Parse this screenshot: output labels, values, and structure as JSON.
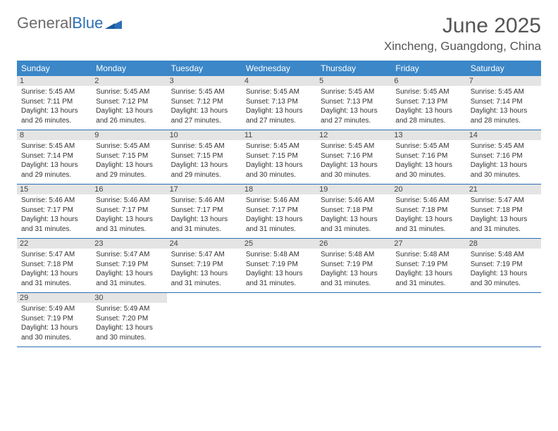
{
  "logo": {
    "text1": "General",
    "text2": "Blue"
  },
  "title": "June 2025",
  "location": "Xincheng, Guangdong, China",
  "colors": {
    "header_bg": "#3b87c8",
    "border": "#2c6fb5",
    "daynum_bg": "#e4e4e4",
    "text": "#333333",
    "title_text": "#555555",
    "logo_gray": "#6b6b6b",
    "logo_blue": "#2c6fb5"
  },
  "weekdays": [
    "Sunday",
    "Monday",
    "Tuesday",
    "Wednesday",
    "Thursday",
    "Friday",
    "Saturday"
  ],
  "weeks": [
    [
      {
        "n": "1",
        "sr": "5:45 AM",
        "ss": "7:11 PM",
        "dl": "13 hours and 26 minutes."
      },
      {
        "n": "2",
        "sr": "5:45 AM",
        "ss": "7:12 PM",
        "dl": "13 hours and 26 minutes."
      },
      {
        "n": "3",
        "sr": "5:45 AM",
        "ss": "7:12 PM",
        "dl": "13 hours and 27 minutes."
      },
      {
        "n": "4",
        "sr": "5:45 AM",
        "ss": "7:13 PM",
        "dl": "13 hours and 27 minutes."
      },
      {
        "n": "5",
        "sr": "5:45 AM",
        "ss": "7:13 PM",
        "dl": "13 hours and 27 minutes."
      },
      {
        "n": "6",
        "sr": "5:45 AM",
        "ss": "7:13 PM",
        "dl": "13 hours and 28 minutes."
      },
      {
        "n": "7",
        "sr": "5:45 AM",
        "ss": "7:14 PM",
        "dl": "13 hours and 28 minutes."
      }
    ],
    [
      {
        "n": "8",
        "sr": "5:45 AM",
        "ss": "7:14 PM",
        "dl": "13 hours and 29 minutes."
      },
      {
        "n": "9",
        "sr": "5:45 AM",
        "ss": "7:15 PM",
        "dl": "13 hours and 29 minutes."
      },
      {
        "n": "10",
        "sr": "5:45 AM",
        "ss": "7:15 PM",
        "dl": "13 hours and 29 minutes."
      },
      {
        "n": "11",
        "sr": "5:45 AM",
        "ss": "7:15 PM",
        "dl": "13 hours and 30 minutes."
      },
      {
        "n": "12",
        "sr": "5:45 AM",
        "ss": "7:16 PM",
        "dl": "13 hours and 30 minutes."
      },
      {
        "n": "13",
        "sr": "5:45 AM",
        "ss": "7:16 PM",
        "dl": "13 hours and 30 minutes."
      },
      {
        "n": "14",
        "sr": "5:45 AM",
        "ss": "7:16 PM",
        "dl": "13 hours and 30 minutes."
      }
    ],
    [
      {
        "n": "15",
        "sr": "5:46 AM",
        "ss": "7:17 PM",
        "dl": "13 hours and 31 minutes."
      },
      {
        "n": "16",
        "sr": "5:46 AM",
        "ss": "7:17 PM",
        "dl": "13 hours and 31 minutes."
      },
      {
        "n": "17",
        "sr": "5:46 AM",
        "ss": "7:17 PM",
        "dl": "13 hours and 31 minutes."
      },
      {
        "n": "18",
        "sr": "5:46 AM",
        "ss": "7:17 PM",
        "dl": "13 hours and 31 minutes."
      },
      {
        "n": "19",
        "sr": "5:46 AM",
        "ss": "7:18 PM",
        "dl": "13 hours and 31 minutes."
      },
      {
        "n": "20",
        "sr": "5:46 AM",
        "ss": "7:18 PM",
        "dl": "13 hours and 31 minutes."
      },
      {
        "n": "21",
        "sr": "5:47 AM",
        "ss": "7:18 PM",
        "dl": "13 hours and 31 minutes."
      }
    ],
    [
      {
        "n": "22",
        "sr": "5:47 AM",
        "ss": "7:18 PM",
        "dl": "13 hours and 31 minutes."
      },
      {
        "n": "23",
        "sr": "5:47 AM",
        "ss": "7:19 PM",
        "dl": "13 hours and 31 minutes."
      },
      {
        "n": "24",
        "sr": "5:47 AM",
        "ss": "7:19 PM",
        "dl": "13 hours and 31 minutes."
      },
      {
        "n": "25",
        "sr": "5:48 AM",
        "ss": "7:19 PM",
        "dl": "13 hours and 31 minutes."
      },
      {
        "n": "26",
        "sr": "5:48 AM",
        "ss": "7:19 PM",
        "dl": "13 hours and 31 minutes."
      },
      {
        "n": "27",
        "sr": "5:48 AM",
        "ss": "7:19 PM",
        "dl": "13 hours and 31 minutes."
      },
      {
        "n": "28",
        "sr": "5:48 AM",
        "ss": "7:19 PM",
        "dl": "13 hours and 30 minutes."
      }
    ],
    [
      {
        "n": "29",
        "sr": "5:49 AM",
        "ss": "7:19 PM",
        "dl": "13 hours and 30 minutes."
      },
      {
        "n": "30",
        "sr": "5:49 AM",
        "ss": "7:20 PM",
        "dl": "13 hours and 30 minutes."
      },
      null,
      null,
      null,
      null,
      null
    ]
  ],
  "labels": {
    "sunrise": "Sunrise:",
    "sunset": "Sunset:",
    "daylight": "Daylight:"
  }
}
